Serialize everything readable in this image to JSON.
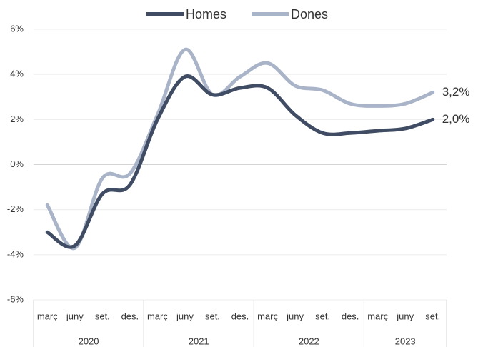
{
  "chart_data": {
    "type": "line",
    "categories": [
      "març",
      "juny",
      "set.",
      "des.",
      "març",
      "juny",
      "set.",
      "des.",
      "març",
      "juny",
      "set.",
      "des.",
      "març",
      "juny",
      "set."
    ],
    "groups": [
      {
        "label": "2020",
        "span": 4
      },
      {
        "label": "2021",
        "span": 4
      },
      {
        "label": "2022",
        "span": 4
      },
      {
        "label": "2023",
        "span": 3
      }
    ],
    "series": [
      {
        "name": "Homes",
        "color": "#3f4c63",
        "values": [
          -3.0,
          -3.6,
          -1.3,
          -0.9,
          2.0,
          3.9,
          3.1,
          3.4,
          3.4,
          2.2,
          1.4,
          1.4,
          1.5,
          1.6,
          2.0
        ],
        "end_label": "2,0%"
      },
      {
        "name": "Dones",
        "color": "#a9b4c8",
        "values": [
          -1.8,
          -3.7,
          -0.6,
          -0.4,
          2.2,
          5.1,
          3.1,
          3.9,
          4.5,
          3.5,
          3.3,
          2.7,
          2.6,
          2.7,
          3.2
        ],
        "end_label": "3,2%"
      }
    ],
    "ylim": [
      -6,
      6
    ],
    "yticks": [
      {
        "value": -6,
        "label": "-6%"
      },
      {
        "value": -4,
        "label": "-4%"
      },
      {
        "value": -2,
        "label": "-2%"
      },
      {
        "value": 0,
        "label": "0%"
      },
      {
        "value": 2,
        "label": "2%"
      },
      {
        "value": 4,
        "label": "4%"
      },
      {
        "value": 6,
        "label": "6%"
      }
    ],
    "grid": true,
    "legend": "top"
  }
}
